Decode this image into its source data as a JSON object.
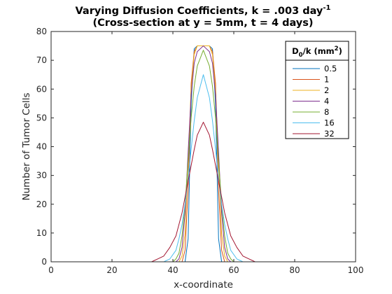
{
  "chart_data": {
    "type": "line",
    "title_line1_main": "Varying Diffusion Coefficients, k = .003 day",
    "title_line1_sup": "-1",
    "title_line2": "(Cross-section at y = 5mm, t = 4 days)",
    "xlabel": "x-coordinate",
    "ylabel": "Number of Tumor Cells",
    "xlim": [
      0,
      100
    ],
    "ylim": [
      0,
      80
    ],
    "xticks": [
      0,
      20,
      40,
      60,
      80,
      100
    ],
    "yticks": [
      0,
      10,
      20,
      30,
      40,
      50,
      60,
      70,
      80
    ],
    "legend": {
      "title_d": "D",
      "title_sub": "0",
      "title_mid": "/k (mm",
      "title_sup": "2",
      "title_end": ")",
      "placement": "top-right"
    },
    "series": [
      {
        "name": "0.5",
        "color": "#0072bd",
        "x": [
          0,
          44,
          45,
          46,
          47,
          48,
          52,
          53,
          54,
          55,
          56,
          100
        ],
        "y": [
          0,
          0,
          8,
          55,
          74,
          75,
          75,
          74,
          55,
          8,
          0,
          0
        ]
      },
      {
        "name": "1",
        "color": "#d95319",
        "x": [
          0,
          43,
          44,
          45,
          46,
          47,
          48,
          52,
          53,
          54,
          55,
          56,
          57,
          100
        ],
        "y": [
          0,
          0,
          4,
          25,
          62,
          73,
          75,
          75,
          73,
          62,
          25,
          4,
          0,
          0
        ]
      },
      {
        "name": "2",
        "color": "#edb120",
        "x": [
          0,
          42,
          43,
          44,
          45,
          46,
          47,
          48,
          52,
          53,
          54,
          55,
          56,
          57,
          58,
          100
        ],
        "y": [
          0,
          0,
          2,
          10,
          35,
          60,
          72,
          75,
          75,
          72,
          60,
          35,
          10,
          2,
          0,
          0
        ]
      },
      {
        "name": "4",
        "color": "#7e2f8e",
        "x": [
          0,
          41,
          42,
          43,
          44,
          45,
          46,
          47,
          48,
          50,
          52,
          53,
          54,
          55,
          56,
          57,
          58,
          59,
          100
        ],
        "y": [
          0,
          0,
          1,
          5,
          17,
          38,
          58,
          69,
          73,
          75,
          73,
          69,
          58,
          38,
          17,
          5,
          1,
          0,
          0
        ]
      },
      {
        "name": "8",
        "color": "#77ac30",
        "x": [
          0,
          40,
          41,
          42,
          43,
          44,
          45,
          46,
          47,
          48,
          50,
          52,
          53,
          54,
          55,
          56,
          57,
          58,
          59,
          60,
          100
        ],
        "y": [
          0,
          0,
          1,
          3,
          9,
          20,
          35,
          50,
          61,
          68,
          73.5,
          68,
          61,
          50,
          35,
          20,
          9,
          3,
          1,
          0,
          0
        ]
      },
      {
        "name": "16",
        "color": "#4dbeee",
        "x": [
          0,
          37,
          39,
          41,
          42,
          43,
          44,
          45,
          46,
          47,
          48,
          50,
          52,
          53,
          54,
          55,
          56,
          57,
          58,
          59,
          61,
          63,
          100
        ],
        "y": [
          0,
          0,
          1,
          4,
          8,
          13,
          20,
          29,
          39,
          49,
          57,
          65,
          57,
          49,
          39,
          29,
          20,
          13,
          8,
          4,
          1,
          0,
          0
        ]
      },
      {
        "name": "32",
        "color": "#a2142f",
        "x": [
          0,
          33,
          35,
          37,
          39,
          41,
          43,
          45,
          47,
          48,
          50,
          52,
          53,
          55,
          57,
          59,
          61,
          63,
          65,
          67,
          100
        ],
        "y": [
          0,
          0,
          1,
          2,
          5,
          9,
          17,
          28,
          39,
          44,
          48.5,
          44,
          39,
          28,
          17,
          9,
          5,
          2,
          1,
          0,
          0
        ]
      }
    ]
  }
}
